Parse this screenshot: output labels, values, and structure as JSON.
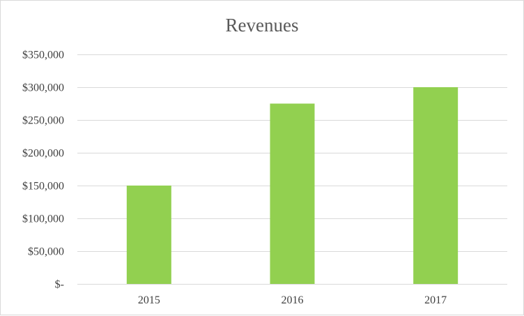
{
  "chart_data": {
    "type": "bar",
    "title": "Revenues",
    "xlabel": "",
    "ylabel": "",
    "categories": [
      "2015",
      "2016",
      "2017"
    ],
    "values": [
      150000,
      275000,
      300000
    ],
    "ylim": [
      0,
      350000
    ],
    "yticks": [
      0,
      50000,
      100000,
      150000,
      200000,
      250000,
      300000,
      350000
    ],
    "ytick_labels": [
      "$-",
      "$50,000",
      "$100,000",
      "$150,000",
      "$200,000",
      "$250,000",
      "$300,000",
      "$350,000"
    ],
    "bar_color": "#92d050",
    "grid": true,
    "legend": "none"
  }
}
